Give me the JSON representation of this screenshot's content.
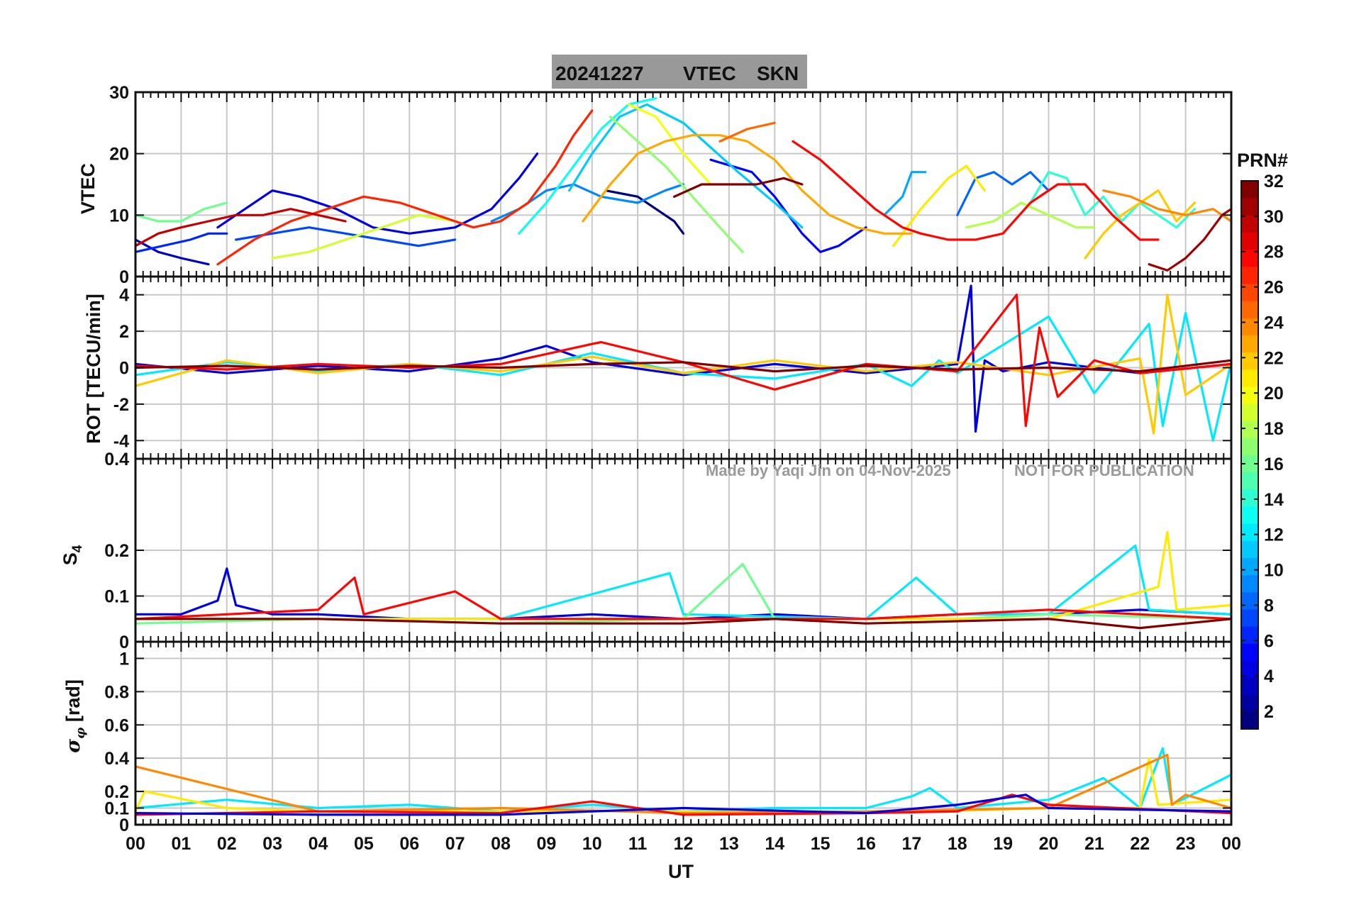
{
  "title": {
    "date": "20241227",
    "quantity": "VTEC",
    "station": "SKN"
  },
  "watermark": {
    "credit": "Made by Yaqi Jin on 04-Nov-2025",
    "notice": "NOT FOR PUBLICATION"
  },
  "colorbar": {
    "label": "PRN#",
    "colormap": "jet",
    "range": [
      1,
      32
    ],
    "ticks": [
      "2",
      "4",
      "6",
      "8",
      "10",
      "12",
      "14",
      "16",
      "18",
      "20",
      "22",
      "24",
      "26",
      "28",
      "30",
      "32"
    ]
  },
  "chart_data": [
    {
      "type": "line",
      "ylabel": "VTEC",
      "ylim": [
        0,
        30
      ],
      "yticks": [
        "0",
        "10",
        "20",
        "30"
      ],
      "xlabel": "",
      "xlim": [
        0,
        24
      ],
      "grid": true,
      "series": [
        {
          "prn": 1,
          "x": [
            10.3,
            11.0,
            11.8,
            12.0
          ],
          "y": [
            14,
            13,
            9,
            7
          ]
        },
        {
          "prn": 3,
          "x": [
            0.0,
            0.5,
            1.0,
            1.6
          ],
          "y": [
            6,
            4,
            3,
            2
          ]
        },
        {
          "prn": 4,
          "x": [
            1.8,
            2.4,
            3.0,
            3.6,
            4.4,
            5.2,
            6.0,
            7.0,
            7.8,
            8.4,
            8.8
          ],
          "y": [
            8,
            11,
            14,
            13,
            11,
            8,
            7,
            8,
            11,
            16,
            20
          ]
        },
        {
          "prn": 5,
          "x": [
            12.6,
            13.5,
            14.0,
            14.6,
            15.0,
            15.4,
            16.0
          ],
          "y": [
            19,
            17,
            13,
            7,
            4,
            5,
            8
          ]
        },
        {
          "prn": 6,
          "x": [
            0.0,
            0.6,
            1.2,
            1.6,
            2.0
          ],
          "y": [
            4,
            5,
            6,
            7,
            7
          ]
        },
        {
          "prn": 7,
          "x": [
            2.2,
            3.0,
            3.8,
            4.6,
            5.4,
            6.2,
            7.0
          ],
          "y": [
            6,
            7,
            8,
            7,
            6,
            5,
            6
          ]
        },
        {
          "prn": 8,
          "x": [
            18.0,
            18.4,
            18.8,
            19.2,
            19.6,
            20.0
          ],
          "y": [
            10,
            16,
            17,
            15,
            17,
            14
          ]
        },
        {
          "prn": 9,
          "x": [
            7.8,
            8.4,
            9.0,
            9.6,
            10.2,
            11.0,
            11.6,
            12.0
          ],
          "y": [
            9,
            11,
            14,
            15,
            13,
            12,
            14,
            15
          ]
        },
        {
          "prn": 10,
          "x": [
            16.4,
            16.8,
            17.0,
            17.3
          ],
          "y": [
            10,
            13,
            17,
            17
          ]
        },
        {
          "prn": 11,
          "x": [
            9.5,
            10.0,
            10.6,
            11.2,
            12.0,
            12.6,
            13.2,
            14.0,
            14.6
          ],
          "y": [
            14,
            20,
            26,
            28,
            25,
            21,
            17,
            12,
            8
          ]
        },
        {
          "prn": 13,
          "x": [
            8.4,
            9.0,
            9.6,
            10.2,
            10.8,
            11.4
          ],
          "y": [
            7,
            12,
            18,
            24,
            28,
            29
          ]
        },
        {
          "prn": 14,
          "x": [
            19.6,
            20.0,
            20.4,
            20.8,
            21.2,
            21.6,
            22.0,
            22.4,
            22.8,
            23.2
          ],
          "y": [
            12,
            17,
            16,
            10,
            13,
            9,
            12,
            10,
            8,
            11
          ]
        },
        {
          "prn": 16,
          "x": [
            0.0,
            0.5,
            1.0,
            1.5,
            2.0
          ],
          "y": [
            10,
            9,
            9,
            11,
            12
          ]
        },
        {
          "prn": 17,
          "x": [
            10.4,
            11.0,
            11.6,
            12.2,
            12.8,
            13.3
          ],
          "y": [
            26,
            22,
            18,
            13,
            8,
            4
          ]
        },
        {
          "prn": 18,
          "x": [
            18.2,
            18.8,
            19.4,
            20.0,
            20.6,
            21.0
          ],
          "y": [
            8,
            9,
            12,
            10,
            8,
            8
          ]
        },
        {
          "prn": 19,
          "x": [
            3.0,
            3.8,
            4.6,
            5.4,
            6.2,
            7.0
          ],
          "y": [
            3,
            4,
            6,
            8,
            10,
            9
          ]
        },
        {
          "prn": 20,
          "x": [
            10.8,
            11.4,
            12.0,
            12.6
          ],
          "y": [
            28,
            26,
            20,
            15
          ]
        },
        {
          "prn": 21,
          "x": [
            16.6,
            17.2,
            17.8,
            18.2,
            18.6
          ],
          "y": [
            5,
            11,
            16,
            18,
            14
          ]
        },
        {
          "prn": 22,
          "x": [
            20.8,
            21.2,
            21.6,
            22.0,
            22.4,
            22.8,
            23.2
          ],
          "y": [
            3,
            7,
            10,
            12,
            14,
            9,
            12
          ]
        },
        {
          "prn": 23,
          "x": [
            9.8,
            10.4,
            11.0,
            11.6,
            12.2,
            12.8,
            13.4,
            14.0,
            14.6,
            15.2,
            15.8,
            16.4,
            17.0
          ],
          "y": [
            9,
            15,
            20,
            22,
            23,
            23,
            22,
            19,
            14,
            10,
            8,
            7,
            7
          ]
        },
        {
          "prn": 24,
          "x": [
            21.2,
            21.8,
            22.4,
            23.0,
            23.6,
            24.0
          ],
          "y": [
            14,
            13,
            11,
            10,
            11,
            9
          ]
        },
        {
          "prn": 25,
          "x": [
            12.8,
            13.4,
            14.0
          ],
          "y": [
            22,
            24,
            25
          ]
        },
        {
          "prn": 27,
          "x": [
            1.8,
            2.6,
            3.4,
            4.2,
            5.0,
            5.8,
            6.6,
            7.4,
            8.0,
            8.6,
            9.2,
            9.6,
            10.0
          ],
          "y": [
            2,
            6,
            9,
            11,
            13,
            12,
            10,
            8,
            9,
            12,
            18,
            23,
            27
          ]
        },
        {
          "prn": 28,
          "x": [
            14.4,
            15.0,
            15.6,
            16.2,
            16.8,
            17.2,
            17.8,
            18.4,
            19.0,
            19.6,
            20.2,
            20.8,
            21.4,
            22.0,
            22.4
          ],
          "y": [
            22,
            19,
            15,
            11,
            8,
            7,
            6,
            6,
            7,
            12,
            15,
            15,
            10,
            6,
            6
          ]
        },
        {
          "prn": 30,
          "x": [
            0.0,
            0.5,
            1.0,
            1.6,
            2.2,
            2.8,
            3.4,
            4.0,
            4.6
          ],
          "y": [
            5,
            7,
            8,
            9,
            10,
            10,
            11,
            10,
            9
          ]
        },
        {
          "prn": 31,
          "x": [
            22.2,
            22.6,
            23.0,
            23.4,
            23.8,
            24.0
          ],
          "y": [
            2,
            1,
            3,
            6,
            10,
            11
          ]
        },
        {
          "prn": 32,
          "x": [
            11.8,
            12.4,
            13.0,
            13.6,
            14.2,
            14.6
          ],
          "y": [
            13,
            15,
            15,
            15,
            16,
            15
          ]
        }
      ]
    },
    {
      "type": "line",
      "ylabel": "ROT [TECU/min]",
      "ylim": [
        -5,
        5
      ],
      "yticks": [
        "-4",
        "-2",
        "0",
        "2",
        "4"
      ],
      "xlim": [
        0,
        24
      ],
      "grid": true,
      "series": [
        {
          "prn": 4,
          "x": [
            0,
            2,
            4,
            6,
            8,
            9,
            10,
            12,
            14,
            16,
            18,
            18.3,
            18.4,
            18.6,
            19,
            20,
            22,
            24
          ],
          "y": [
            0.2,
            -0.3,
            0.1,
            -0.2,
            0.5,
            1.2,
            0.3,
            -0.4,
            0.2,
            -0.3,
            0.2,
            4.5,
            -3.5,
            0.4,
            -0.2,
            0.3,
            -0.3,
            0.2
          ]
        },
        {
          "prn": 12,
          "x": [
            0,
            2,
            4,
            6,
            8,
            10,
            12,
            14,
            16,
            17,
            17.6,
            18,
            20,
            21,
            22.2,
            22.5,
            23,
            23.6,
            24
          ],
          "y": [
            -0.4,
            0.3,
            -0.2,
            0.2,
            -0.4,
            0.8,
            -0.3,
            -0.6,
            0.2,
            -1.0,
            0.4,
            -0.3,
            2.8,
            -1.4,
            2.4,
            -3.2,
            3.0,
            -4.0,
            0.3
          ]
        },
        {
          "prn": 22,
          "x": [
            0,
            2,
            4,
            6,
            8,
            10,
            12,
            14,
            16,
            18,
            20,
            22,
            22.3,
            22.6,
            23,
            24
          ],
          "y": [
            -1.0,
            0.4,
            -0.3,
            0.2,
            -0.2,
            0.6,
            -0.3,
            0.4,
            -0.2,
            0.3,
            -0.4,
            0.5,
            -3.6,
            4.0,
            -1.5,
            0.2
          ]
        },
        {
          "prn": 28,
          "x": [
            0,
            2,
            4,
            6,
            8,
            10,
            10.2,
            12,
            14,
            16,
            18,
            19.3,
            19.5,
            19.8,
            20.2,
            21,
            22,
            24
          ],
          "y": [
            0.1,
            -0.1,
            0.2,
            0.0,
            0.2,
            1.3,
            1.4,
            0.3,
            -1.2,
            0.2,
            -0.2,
            4.0,
            -3.2,
            2.2,
            -1.6,
            0.4,
            -0.3,
            0.2
          ]
        },
        {
          "prn": 32,
          "x": [
            0,
            2,
            4,
            6,
            8,
            10,
            12,
            14,
            16,
            18,
            20,
            22,
            24
          ],
          "y": [
            0.0,
            0.1,
            -0.1,
            0.1,
            0.0,
            0.2,
            0.3,
            -0.2,
            0.1,
            -0.1,
            0.0,
            -0.2,
            0.4
          ]
        }
      ]
    },
    {
      "type": "line",
      "ylabel": "S4",
      "ylim": [
        0,
        0.4
      ],
      "yticks": [
        "0",
        "0.1",
        "0.2",
        "0.4"
      ],
      "xlim": [
        0,
        24
      ],
      "grid": true,
      "series": [
        {
          "prn": 4,
          "x": [
            0,
            1,
            1.8,
            2.0,
            2.2,
            3,
            4,
            6,
            8,
            10,
            12,
            14,
            16,
            18,
            20,
            22,
            24
          ],
          "y": [
            0.06,
            0.06,
            0.09,
            0.16,
            0.08,
            0.06,
            0.06,
            0.05,
            0.05,
            0.06,
            0.05,
            0.06,
            0.05,
            0.06,
            0.06,
            0.07,
            0.06
          ]
        },
        {
          "prn": 12,
          "x": [
            0,
            4,
            8,
            11.7,
            12,
            16,
            17.1,
            18,
            20,
            21.9,
            22.2,
            24
          ],
          "y": [
            0.05,
            0.05,
            0.05,
            0.15,
            0.06,
            0.05,
            0.14,
            0.06,
            0.06,
            0.21,
            0.07,
            0.06
          ]
        },
        {
          "prn": 16,
          "x": [
            0,
            4,
            8,
            12,
            13.3,
            14,
            18,
            20,
            24
          ],
          "y": [
            0.04,
            0.05,
            0.04,
            0.05,
            0.17,
            0.05,
            0.05,
            0.06,
            0.05
          ]
        },
        {
          "prn": 21,
          "x": [
            0,
            4,
            8,
            12,
            16,
            20,
            22.4,
            22.6,
            22.8,
            24
          ],
          "y": [
            0.05,
            0.05,
            0.05,
            0.05,
            0.05,
            0.05,
            0.12,
            0.24,
            0.07,
            0.08
          ]
        },
        {
          "prn": 28,
          "x": [
            0,
            2,
            4,
            4.8,
            5,
            7,
            8,
            12,
            16,
            20,
            24
          ],
          "y": [
            0.05,
            0.06,
            0.07,
            0.14,
            0.06,
            0.11,
            0.05,
            0.05,
            0.05,
            0.07,
            0.05
          ]
        },
        {
          "prn": 32,
          "x": [
            0,
            4,
            8,
            12,
            14,
            16,
            20,
            22,
            24
          ],
          "y": [
            0.05,
            0.05,
            0.04,
            0.04,
            0.05,
            0.04,
            0.05,
            0.03,
            0.05
          ]
        }
      ]
    },
    {
      "type": "line",
      "ylabel": "σ_φ [rad]",
      "ylim": [
        0,
        1.1
      ],
      "yticks": [
        "0",
        "0.1",
        "0.2",
        "0.4",
        "0.6",
        "0.8",
        "1"
      ],
      "xlabel": "UT",
      "xlim": [
        0,
        24
      ],
      "xticks": [
        "00",
        "01",
        "02",
        "03",
        "04",
        "05",
        "06",
        "07",
        "08",
        "09",
        "10",
        "11",
        "12",
        "13",
        "14",
        "15",
        "16",
        "17",
        "18",
        "19",
        "20",
        "21",
        "22",
        "23",
        "00"
      ],
      "grid": true,
      "series": [
        {
          "prn": 12,
          "x": [
            0,
            2,
            4,
            6,
            8,
            10,
            12,
            14,
            16,
            17,
            17.4,
            18,
            20,
            21.2,
            22,
            22.5,
            22.7,
            24
          ],
          "y": [
            0.1,
            0.15,
            0.1,
            0.12,
            0.08,
            0.12,
            0.08,
            0.1,
            0.1,
            0.17,
            0.22,
            0.1,
            0.15,
            0.28,
            0.1,
            0.46,
            0.12,
            0.3
          ]
        },
        {
          "prn": 21,
          "x": [
            0,
            0.2,
            2,
            4,
            8,
            12,
            16,
            20,
            22,
            22.2,
            22.4,
            24
          ],
          "y": [
            0.08,
            0.2,
            0.1,
            0.08,
            0.08,
            0.08,
            0.07,
            0.1,
            0.1,
            0.4,
            0.12,
            0.15
          ]
        },
        {
          "prn": 24,
          "x": [
            0,
            4,
            8,
            12,
            16,
            20,
            22.6,
            22.7,
            23,
            24
          ],
          "y": [
            0.35,
            0.08,
            0.1,
            0.07,
            0.08,
            0.1,
            0.42,
            0.12,
            0.18,
            0.1
          ]
        },
        {
          "prn": 28,
          "x": [
            0,
            4,
            8,
            10,
            12,
            16,
            18,
            19.2,
            20,
            24
          ],
          "y": [
            0.06,
            0.08,
            0.07,
            0.14,
            0.06,
            0.07,
            0.08,
            0.18,
            0.12,
            0.07
          ]
        },
        {
          "prn": 4,
          "x": [
            0,
            4,
            8,
            12,
            16,
            18,
            19.5,
            20,
            24
          ],
          "y": [
            0.07,
            0.06,
            0.06,
            0.1,
            0.07,
            0.12,
            0.18,
            0.1,
            0.08
          ]
        }
      ]
    }
  ]
}
